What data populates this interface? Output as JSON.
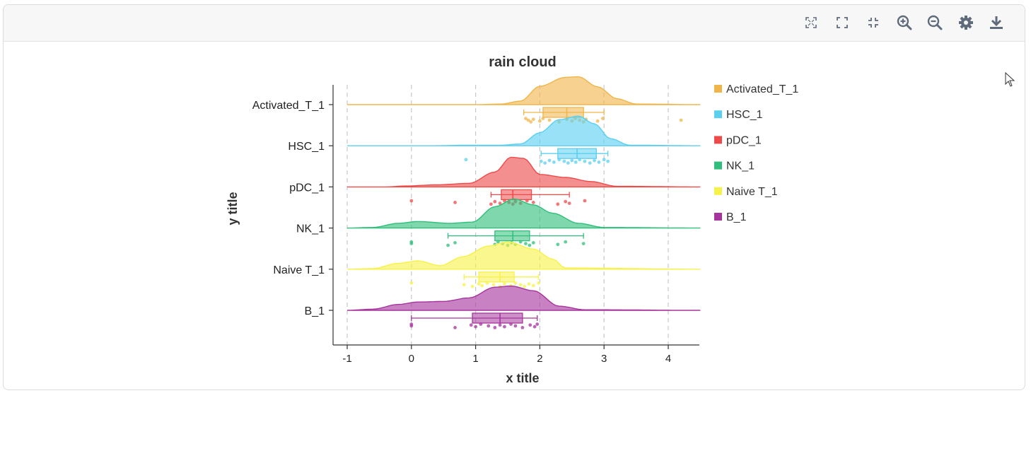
{
  "toolbar": {
    "icons": [
      "fit-screen-icon",
      "fullscreen-icon",
      "exit-fullscreen-icon",
      "zoom-in-icon",
      "zoom-out-icon",
      "settings-icon",
      "download-icon"
    ],
    "icon_color": "#5f6b7a"
  },
  "chart_data": {
    "type": "raincloud",
    "title": "rain cloud",
    "xlabel": "x title",
    "ylabel": "y title",
    "xlim": [
      -1.2,
      4.5
    ],
    "xticks": [
      -1,
      0,
      1,
      2,
      3,
      4
    ],
    "xtick_labels": [
      "-1",
      "0",
      "1",
      "2",
      "3",
      "4"
    ],
    "grid": "vertical dashed at x ticks",
    "legend_position": "right",
    "series": [
      {
        "name": "Activated_T_1",
        "color": "#f0b54a",
        "density": [
          [
            -1,
            0
          ],
          [
            1,
            0
          ],
          [
            1.4,
            0.02
          ],
          [
            1.7,
            0.12
          ],
          [
            2.0,
            0.62
          ],
          [
            2.4,
            0.92
          ],
          [
            2.6,
            0.94
          ],
          [
            2.9,
            0.6
          ],
          [
            3.2,
            0.2
          ],
          [
            3.5,
            0.02
          ],
          [
            4.5,
            0
          ]
        ],
        "box": {
          "whisker_low": 1.75,
          "q1": 2.05,
          "median": 2.42,
          "q3": 2.68,
          "whisker_high": 3.0
        },
        "points": [
          1.78,
          1.82,
          1.86,
          1.9,
          2.0,
          2.05,
          2.15,
          2.3,
          2.42,
          2.5,
          2.55,
          2.62,
          2.68,
          2.72,
          2.9,
          2.98,
          4.2
        ]
      },
      {
        "name": "HSC_1",
        "color": "#5bcff0",
        "density": [
          [
            -1,
            0
          ],
          [
            0.3,
            0
          ],
          [
            0.9,
            0.02
          ],
          [
            1.4,
            0.02
          ],
          [
            1.7,
            0.06
          ],
          [
            2.0,
            0.44
          ],
          [
            2.3,
            0.88
          ],
          [
            2.6,
            1.0
          ],
          [
            2.85,
            0.74
          ],
          [
            3.1,
            0.24
          ],
          [
            3.4,
            0.02
          ],
          [
            4.5,
            0
          ]
        ],
        "box": {
          "whisker_low": 2.02,
          "q1": 2.28,
          "median": 2.58,
          "q3": 2.88,
          "whisker_high": 3.06
        },
        "points": [
          0.85,
          2.02,
          2.08,
          2.15,
          2.22,
          2.3,
          2.38,
          2.44,
          2.5,
          2.56,
          2.62,
          2.7,
          2.78,
          2.85,
          2.92,
          3.0,
          3.06
        ]
      },
      {
        "name": "pDC_1",
        "color": "#ee4a4a",
        "density": [
          [
            -1,
            0
          ],
          [
            -0.4,
            0
          ],
          [
            -0.1,
            0.03
          ],
          [
            0.4,
            0.07
          ],
          [
            0.9,
            0.12
          ],
          [
            1.3,
            0.5
          ],
          [
            1.55,
            1.0
          ],
          [
            1.75,
            0.96
          ],
          [
            2.0,
            0.42
          ],
          [
            2.4,
            0.32
          ],
          [
            2.8,
            0.18
          ],
          [
            3.2,
            0.02
          ],
          [
            4.5,
            0
          ]
        ],
        "box": {
          "whisker_low": 1.24,
          "q1": 1.4,
          "median": 1.58,
          "q3": 1.87,
          "whisker_high": 2.46
        },
        "points": [
          0.0,
          0.68,
          1.24,
          1.3,
          1.38,
          1.45,
          1.52,
          1.58,
          1.62,
          1.7,
          1.8,
          1.9,
          2.28,
          2.4,
          2.46,
          2.7
        ]
      },
      {
        "name": "NK_1",
        "color": "#2fbf7a",
        "density": [
          [
            -1,
            0
          ],
          [
            -0.6,
            0.02
          ],
          [
            -0.2,
            0.16
          ],
          [
            0.1,
            0.22
          ],
          [
            0.6,
            0.16
          ],
          [
            0.95,
            0.2
          ],
          [
            1.3,
            0.72
          ],
          [
            1.6,
            0.98
          ],
          [
            1.9,
            0.78
          ],
          [
            2.2,
            0.5
          ],
          [
            2.6,
            0.16
          ],
          [
            3.0,
            0.02
          ],
          [
            4.5,
            0
          ]
        ],
        "box": {
          "whisker_low": 0.57,
          "q1": 1.3,
          "median": 1.58,
          "q3": 1.84,
          "whisker_high": 2.68
        },
        "points": [
          0.0,
          0.0,
          0.57,
          0.68,
          1.3,
          1.35,
          1.42,
          1.5,
          1.56,
          1.62,
          1.7,
          1.78,
          1.84,
          1.9,
          2.28,
          2.4,
          2.68
        ]
      },
      {
        "name": "Naive T_1",
        "color": "#f7f24a",
        "density": [
          [
            -1,
            0
          ],
          [
            -0.6,
            0.02
          ],
          [
            -0.2,
            0.2
          ],
          [
            0.1,
            0.28
          ],
          [
            0.45,
            0.12
          ],
          [
            0.8,
            0.42
          ],
          [
            1.2,
            0.78
          ],
          [
            1.5,
            0.92
          ],
          [
            1.9,
            0.68
          ],
          [
            2.2,
            0.34
          ],
          [
            2.4,
            0.04
          ],
          [
            4.5,
            0
          ]
        ],
        "box": {
          "whisker_low": 0.82,
          "q1": 1.05,
          "median": 1.38,
          "q3": 1.6,
          "whisker_high": 1.98
        },
        "points": [
          0.0,
          0.82,
          0.95,
          1.05,
          1.1,
          1.18,
          1.28,
          1.38,
          1.45,
          1.55,
          1.62,
          1.7,
          1.76,
          1.83,
          1.9,
          1.98
        ]
      },
      {
        "name": "B_1",
        "color": "#a6349c",
        "density": [
          [
            -1,
            0
          ],
          [
            -0.6,
            0.04
          ],
          [
            -0.2,
            0.2
          ],
          [
            0.1,
            0.28
          ],
          [
            0.5,
            0.3
          ],
          [
            0.9,
            0.42
          ],
          [
            1.3,
            0.78
          ],
          [
            1.55,
            0.82
          ],
          [
            1.9,
            0.66
          ],
          [
            2.3,
            0.14
          ],
          [
            2.7,
            0.02
          ],
          [
            4.5,
            0
          ]
        ],
        "box": {
          "whisker_low": 0.0,
          "q1": 0.95,
          "median": 1.38,
          "q3": 1.73,
          "whisker_high": 1.96
        },
        "points": [
          0.0,
          0.0,
          0.68,
          0.93,
          1.0,
          1.08,
          1.2,
          1.3,
          1.38,
          1.45,
          1.55,
          1.62,
          1.73,
          1.85,
          1.92,
          1.96
        ]
      }
    ]
  }
}
